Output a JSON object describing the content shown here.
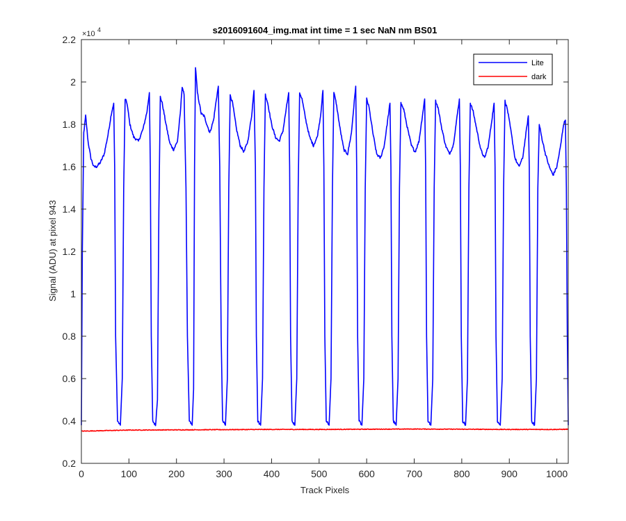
{
  "chart_data": {
    "type": "line",
    "title": "s2016091604_img.mat int time = 1 sec  NaN nm BS01",
    "xlabel": "Track Pixels",
    "ylabel": "Signal (ADU) at pixel 943",
    "y_exponent_label": "×10",
    "y_exponent_power": "4",
    "xlim": [
      0,
      1024
    ],
    "ylim": [
      0.2,
      2.2
    ],
    "y_scale_note": "values in units of 10^4 ADU",
    "x_ticks": [
      0,
      100,
      200,
      300,
      400,
      500,
      600,
      700,
      800,
      900,
      1000
    ],
    "x_tick_labels": [
      "0",
      "100",
      "200",
      "300",
      "400",
      "500",
      "600",
      "700",
      "800",
      "900",
      "1000"
    ],
    "y_ticks": [
      0.2,
      0.4,
      0.6,
      0.8,
      1.0,
      1.2,
      1.4,
      1.6,
      1.8,
      2.0,
      2.2
    ],
    "y_tick_labels": [
      "0.2",
      "0.4",
      "0.6",
      "0.8",
      "1",
      "1.2",
      "1.4",
      "1.6",
      "1.8",
      "2",
      "2.2"
    ],
    "grid": false,
    "legend_position": "top-right",
    "series": [
      {
        "name": "Lite",
        "color": "#0000ff",
        "points": [
          [
            0,
            0.38
          ],
          [
            2,
            1.2
          ],
          [
            5,
            1.76
          ],
          [
            9,
            1.84
          ],
          [
            14,
            1.72
          ],
          [
            20,
            1.64
          ],
          [
            26,
            1.6
          ],
          [
            32,
            1.6
          ],
          [
            40,
            1.62
          ],
          [
            48,
            1.66
          ],
          [
            56,
            1.75
          ],
          [
            63,
            1.85
          ],
          [
            68,
            1.9
          ],
          [
            70,
            1.6
          ],
          [
            72,
            0.8
          ],
          [
            76,
            0.4
          ],
          [
            82,
            0.38
          ],
          [
            86,
            0.6
          ],
          [
            89,
            1.5
          ],
          [
            92,
            1.92
          ],
          [
            96,
            1.9
          ],
          [
            102,
            1.8
          ],
          [
            110,
            1.74
          ],
          [
            120,
            1.72
          ],
          [
            130,
            1.78
          ],
          [
            138,
            1.86
          ],
          [
            143,
            1.95
          ],
          [
            145,
            1.6
          ],
          [
            147,
            0.8
          ],
          [
            150,
            0.4
          ],
          [
            156,
            0.38
          ],
          [
            160,
            0.5
          ],
          [
            163,
            1.4
          ],
          [
            166,
            1.93
          ],
          [
            170,
            1.9
          ],
          [
            178,
            1.8
          ],
          [
            186,
            1.71
          ],
          [
            194,
            1.68
          ],
          [
            202,
            1.72
          ],
          [
            208,
            1.85
          ],
          [
            212,
            1.98
          ],
          [
            216,
            1.94
          ],
          [
            220,
            1.5
          ],
          [
            223,
            0.8
          ],
          [
            227,
            0.4
          ],
          [
            233,
            0.38
          ],
          [
            236,
            0.55
          ],
          [
            238,
            1.6
          ],
          [
            240,
            2.07
          ],
          [
            244,
            1.95
          ],
          [
            252,
            1.85
          ],
          [
            258,
            1.84
          ],
          [
            264,
            1.8
          ],
          [
            270,
            1.76
          ],
          [
            278,
            1.82
          ],
          [
            284,
            1.92
          ],
          [
            288,
            1.98
          ],
          [
            291,
            1.6
          ],
          [
            294,
            0.8
          ],
          [
            297,
            0.4
          ],
          [
            303,
            0.38
          ],
          [
            307,
            0.6
          ],
          [
            310,
            1.5
          ],
          [
            313,
            1.94
          ],
          [
            318,
            1.9
          ],
          [
            326,
            1.78
          ],
          [
            334,
            1.7
          ],
          [
            342,
            1.67
          ],
          [
            350,
            1.72
          ],
          [
            358,
            1.84
          ],
          [
            363,
            1.96
          ],
          [
            366,
            1.6
          ],
          [
            368,
            0.8
          ],
          [
            371,
            0.4
          ],
          [
            377,
            0.38
          ],
          [
            381,
            0.6
          ],
          [
            384,
            1.5
          ],
          [
            387,
            1.94
          ],
          [
            392,
            1.9
          ],
          [
            400,
            1.8
          ],
          [
            408,
            1.74
          ],
          [
            416,
            1.72
          ],
          [
            424,
            1.77
          ],
          [
            430,
            1.86
          ],
          [
            436,
            1.95
          ],
          [
            438,
            1.6
          ],
          [
            440,
            0.8
          ],
          [
            443,
            0.4
          ],
          [
            449,
            0.38
          ],
          [
            453,
            0.6
          ],
          [
            456,
            1.5
          ],
          [
            459,
            1.95
          ],
          [
            464,
            1.92
          ],
          [
            472,
            1.82
          ],
          [
            480,
            1.74
          ],
          [
            488,
            1.7
          ],
          [
            496,
            1.74
          ],
          [
            503,
            1.84
          ],
          [
            508,
            1.96
          ],
          [
            510,
            1.6
          ],
          [
            512,
            0.8
          ],
          [
            515,
            0.4
          ],
          [
            521,
            0.38
          ],
          [
            525,
            0.6
          ],
          [
            528,
            1.5
          ],
          [
            531,
            1.95
          ],
          [
            536,
            1.9
          ],
          [
            544,
            1.78
          ],
          [
            552,
            1.68
          ],
          [
            560,
            1.66
          ],
          [
            568,
            1.76
          ],
          [
            572,
            1.86
          ],
          [
            577,
            1.98
          ],
          [
            579,
            1.6
          ],
          [
            581,
            0.8
          ],
          [
            584,
            0.4
          ],
          [
            590,
            0.38
          ],
          [
            594,
            0.6
          ],
          [
            597,
            1.5
          ],
          [
            600,
            1.92
          ],
          [
            605,
            1.88
          ],
          [
            613,
            1.76
          ],
          [
            621,
            1.66
          ],
          [
            629,
            1.64
          ],
          [
            637,
            1.7
          ],
          [
            643,
            1.8
          ],
          [
            649,
            1.9
          ],
          [
            651,
            1.6
          ],
          [
            653,
            0.8
          ],
          [
            656,
            0.4
          ],
          [
            662,
            0.38
          ],
          [
            666,
            0.6
          ],
          [
            669,
            1.5
          ],
          [
            672,
            1.9
          ],
          [
            678,
            1.87
          ],
          [
            686,
            1.78
          ],
          [
            694,
            1.7
          ],
          [
            702,
            1.67
          ],
          [
            710,
            1.72
          ],
          [
            716,
            1.82
          ],
          [
            722,
            1.92
          ],
          [
            724,
            1.6
          ],
          [
            726,
            0.8
          ],
          [
            729,
            0.4
          ],
          [
            735,
            0.38
          ],
          [
            739,
            0.6
          ],
          [
            742,
            1.5
          ],
          [
            745,
            1.91
          ],
          [
            750,
            1.88
          ],
          [
            758,
            1.78
          ],
          [
            766,
            1.7
          ],
          [
            774,
            1.66
          ],
          [
            782,
            1.7
          ],
          [
            788,
            1.8
          ],
          [
            795,
            1.92
          ],
          [
            797,
            1.6
          ],
          [
            799,
            0.8
          ],
          [
            802,
            0.4
          ],
          [
            808,
            0.38
          ],
          [
            812,
            0.6
          ],
          [
            815,
            1.5
          ],
          [
            818,
            1.9
          ],
          [
            824,
            1.86
          ],
          [
            832,
            1.77
          ],
          [
            840,
            1.68
          ],
          [
            848,
            1.64
          ],
          [
            856,
            1.7
          ],
          [
            862,
            1.8
          ],
          [
            868,
            1.9
          ],
          [
            870,
            1.6
          ],
          [
            872,
            0.8
          ],
          [
            875,
            0.4
          ],
          [
            881,
            0.38
          ],
          [
            885,
            0.6
          ],
          [
            888,
            1.5
          ],
          [
            891,
            1.91
          ],
          [
            896,
            1.87
          ],
          [
            904,
            1.76
          ],
          [
            912,
            1.64
          ],
          [
            920,
            1.6
          ],
          [
            928,
            1.64
          ],
          [
            934,
            1.74
          ],
          [
            940,
            1.84
          ],
          [
            942,
            1.6
          ],
          [
            944,
            0.8
          ],
          [
            947,
            0.4
          ],
          [
            953,
            0.38
          ],
          [
            957,
            0.6
          ],
          [
            960,
            1.5
          ],
          [
            963,
            1.8
          ],
          [
            968,
            1.74
          ],
          [
            976,
            1.66
          ],
          [
            984,
            1.6
          ],
          [
            992,
            1.56
          ],
          [
            1000,
            1.6
          ],
          [
            1008,
            1.7
          ],
          [
            1014,
            1.8
          ],
          [
            1018,
            1.82
          ],
          [
            1020,
            1.5
          ],
          [
            1022,
            0.8
          ],
          [
            1024,
            0.38
          ]
        ]
      },
      {
        "name": "dark",
        "color": "#ff0000",
        "points": [
          [
            0,
            0.352
          ],
          [
            100,
            0.357
          ],
          [
            200,
            0.358
          ],
          [
            300,
            0.359
          ],
          [
            400,
            0.36
          ],
          [
            500,
            0.36
          ],
          [
            600,
            0.361
          ],
          [
            700,
            0.362
          ],
          [
            800,
            0.361
          ],
          [
            900,
            0.36
          ],
          [
            1000,
            0.36
          ],
          [
            1024,
            0.361
          ]
        ]
      }
    ]
  }
}
